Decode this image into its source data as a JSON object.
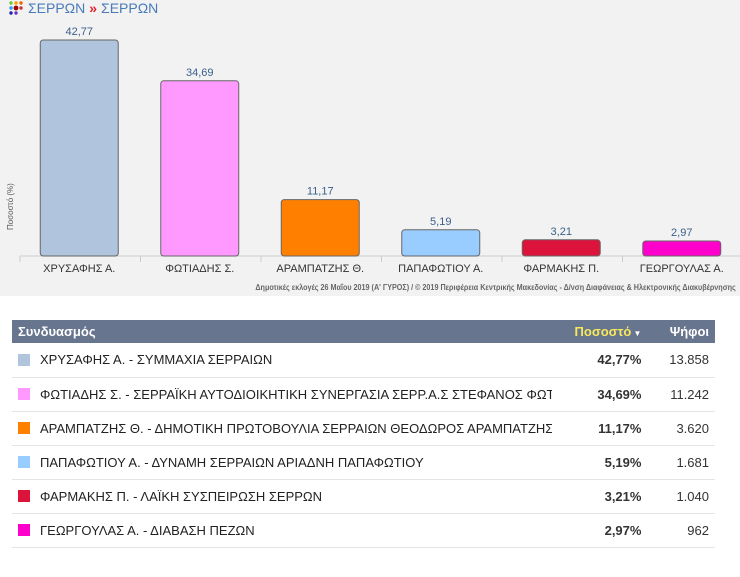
{
  "breadcrumb": {
    "items": [
      "ΣΕΡΡΩΝ",
      "ΣΕΡΡΩΝ"
    ],
    "separator": "»"
  },
  "chart_data": {
    "type": "bar",
    "categories": [
      "ΧΡΥΣΑΦΗΣ Α.",
      "ΦΩΤΙΑΔΗΣ Σ.",
      "ΑΡΑΜΠΑΤΖΗΣ Θ.",
      "ΠΑΠΑΦΩΤΙΟΥ Α.",
      "ΦΑΡΜΑΚΗΣ Π.",
      "ΓΕΩΡΓΟΥΛΑΣ Α."
    ],
    "values": [
      42.77,
      34.69,
      11.17,
      5.19,
      3.21,
      2.97
    ],
    "value_labels": [
      "42,77",
      "34,69",
      "11,17",
      "5,19",
      "3,21",
      "2,97"
    ],
    "colors": [
      "#b0c4de",
      "#ff99ff",
      "#ff8000",
      "#99ccff",
      "#dc143c",
      "#ff00cc"
    ],
    "ylabel": "Ποσοστό (%)",
    "xlabel": "",
    "ylim": [
      0,
      45
    ],
    "grid": false,
    "footnote": "Δημοτικές εκλογές 26 Μαΐου 2019 (Α' ΓΥΡΟΣ) / © 2019 Περιφέρεια Κεντρικής Μακεδονίας - Δ/νση Διαφάνειας & Ηλεκτρονικής Διακυβέρνησης"
  },
  "table": {
    "headers": {
      "combination": "Συνδυασμός",
      "percent": "Ποσοστό",
      "votes": "Ψήφοι"
    },
    "rows": [
      {
        "name": "ΧΡΥΣΑΦΗΣ Α. - ΣΥΜΜΑΧΙΑ ΣΕΡΡΑΙΩΝ",
        "percent": "42,77%",
        "votes": "13.858",
        "color": "#b0c4de"
      },
      {
        "name": "ΦΩΤΙΑΔΗΣ Σ. - ΣΕΡΡΑΪΚΗ ΑΥΤΟΔΙΟΙΚΗΤΙΚΗ ΣΥΝΕΡΓΑΣΙΑ ΣΕΡΡ.Α.Σ ΣΤΕΦΑΝΟΣ ΦΩΤΙΑΔΗΣ",
        "percent": "34,69%",
        "votes": "11.242",
        "color": "#ff99ff"
      },
      {
        "name": "ΑΡΑΜΠΑΤΖΗΣ Θ. - ΔΗΜΟΤΙΚΗ ΠΡΩΤΟΒΟΥΛΙΑ ΣΕΡΡΑΙΩΝ ΘΕΟΔΩΡΟΣ ΑΡΑΜΠΑΤΖΗΣ",
        "percent": "11,17%",
        "votes": "3.620",
        "color": "#ff8000"
      },
      {
        "name": "ΠΑΠΑΦΩΤΙΟΥ Α. - ΔΥΝΑΜΗ ΣΕΡΡΑΙΩΝ ΑΡΙΑΔΝΗ ΠΑΠΑΦΩΤΙΟΥ",
        "percent": "5,19%",
        "votes": "1.681",
        "color": "#99ccff"
      },
      {
        "name": "ΦΑΡΜΑΚΗΣ Π. - ΛΑΪΚΗ ΣΥΣΠΕΙΡΩΣΗ ΣΕΡΡΩΝ",
        "percent": "3,21%",
        "votes": "1.040",
        "color": "#dc143c"
      },
      {
        "name": "ΓΕΩΡΓΟΥΛΑΣ Α. - ΔΙΑΒΑΣΗ ΠΕΖΩΝ",
        "percent": "2,97%",
        "votes": "962",
        "color": "#ff00cc"
      }
    ]
  }
}
